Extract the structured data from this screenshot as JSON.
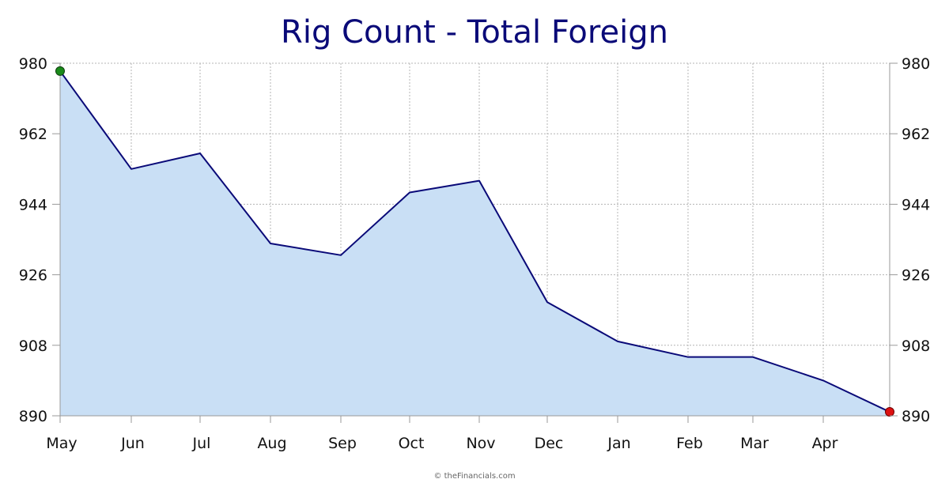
{
  "colors": {
    "title": "#0a0a78",
    "line": "#0a0a78",
    "area": "#c9dff5",
    "grid": "#b4b4b4",
    "start_marker": "#1a8a1a",
    "end_marker": "#dd1111"
  },
  "credit": "© theFinancials.com",
  "chart_data": {
    "type": "area",
    "title": "Rig Count - Total Foreign",
    "xlabel": "",
    "ylabel": "",
    "x_tick_labels": [
      "May",
      "Jun",
      "Jul",
      "Aug",
      "Sep",
      "Oct",
      "Nov",
      "Dec",
      "Jan",
      "Feb",
      "Mar",
      "Apr"
    ],
    "y_ticks": [
      890,
      908,
      926,
      944,
      962,
      980
    ],
    "ylim": [
      890,
      980
    ],
    "y_axis_both_sides": true,
    "grid": true,
    "series": [
      {
        "x": [
          "May",
          "Jun",
          "Jul",
          "Aug",
          "Sep",
          "Oct",
          "Nov",
          "Dec",
          "Jan",
          "Feb",
          "Mar",
          "Apr",
          "May"
        ],
        "values": [
          978,
          953,
          957,
          934,
          931,
          947,
          950,
          919,
          909,
          905,
          905,
          899,
          891
        ]
      }
    ],
    "markers": [
      {
        "point": "first",
        "color": "green"
      },
      {
        "point": "last",
        "color": "red"
      }
    ]
  }
}
